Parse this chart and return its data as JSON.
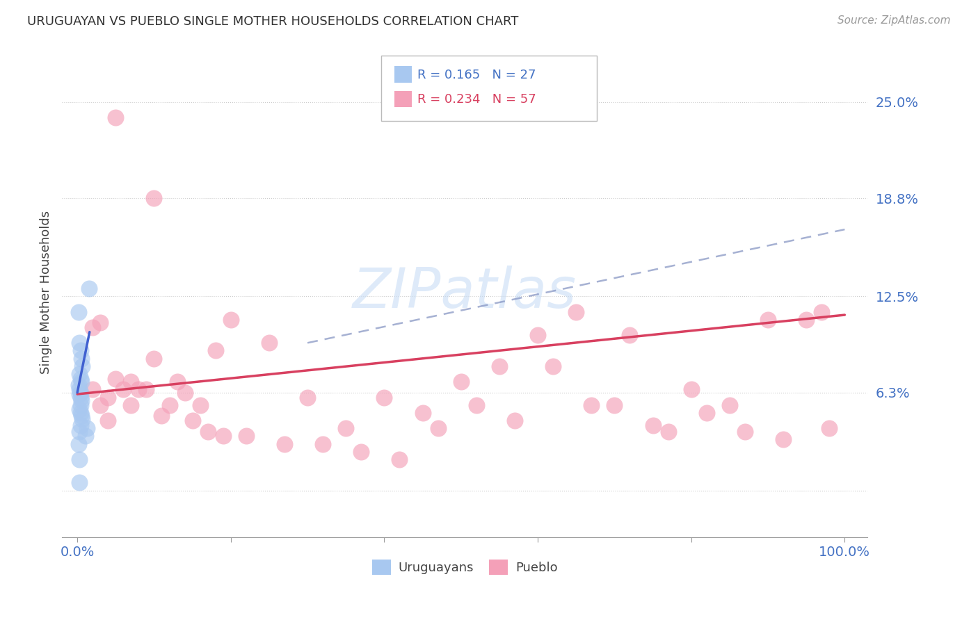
{
  "title": "URUGUAYAN VS PUEBLO SINGLE MOTHER HOUSEHOLDS CORRELATION CHART",
  "source": "Source: ZipAtlas.com",
  "ylabel": "Single Mother Households",
  "blue_color": "#a8c8f0",
  "pink_color": "#f4a0b8",
  "blue_line_color": "#4060d0",
  "pink_line_color": "#d84060",
  "dash_color": "#8090c0",
  "watermark_color": "#c8ddf5",
  "legend_blue_text": "R = 0.165   N = 27",
  "legend_pink_text": "R = 0.234   N = 57",
  "legend_blue_color": "#4472c4",
  "legend_pink_color": "#d84060",
  "uruguayan_x": [
    0.002,
    0.003,
    0.004,
    0.005,
    0.006,
    0.003,
    0.004,
    0.005,
    0.002,
    0.003,
    0.004,
    0.003,
    0.004,
    0.005,
    0.004,
    0.003,
    0.004,
    0.005,
    0.006,
    0.004,
    0.003,
    0.002,
    0.003,
    0.015,
    0.013,
    0.011,
    0.003
  ],
  "uruguayan_y": [
    0.115,
    0.095,
    0.09,
    0.085,
    0.08,
    0.075,
    0.072,
    0.07,
    0.068,
    0.065,
    0.063,
    0.062,
    0.06,
    0.058,
    0.055,
    0.052,
    0.05,
    0.048,
    0.046,
    0.042,
    0.038,
    0.03,
    0.02,
    0.13,
    0.04,
    0.035,
    0.005
  ],
  "pueblo_x": [
    0.02,
    0.03,
    0.04,
    0.05,
    0.06,
    0.07,
    0.08,
    0.1,
    0.12,
    0.14,
    0.16,
    0.18,
    0.2,
    0.25,
    0.3,
    0.35,
    0.4,
    0.45,
    0.5,
    0.55,
    0.6,
    0.65,
    0.7,
    0.75,
    0.8,
    0.85,
    0.9,
    0.95,
    0.98,
    0.02,
    0.03,
    0.04,
    0.07,
    0.09,
    0.11,
    0.13,
    0.15,
    0.17,
    0.19,
    0.22,
    0.27,
    0.32,
    0.37,
    0.42,
    0.47,
    0.52,
    0.57,
    0.62,
    0.67,
    0.72,
    0.77,
    0.82,
    0.87,
    0.92,
    0.97,
    0.05,
    0.1
  ],
  "pueblo_y": [
    0.105,
    0.108,
    0.06,
    0.072,
    0.065,
    0.07,
    0.065,
    0.085,
    0.055,
    0.063,
    0.055,
    0.09,
    0.11,
    0.095,
    0.06,
    0.04,
    0.06,
    0.05,
    0.07,
    0.08,
    0.1,
    0.115,
    0.055,
    0.042,
    0.065,
    0.055,
    0.11,
    0.11,
    0.04,
    0.065,
    0.055,
    0.045,
    0.055,
    0.065,
    0.048,
    0.07,
    0.045,
    0.038,
    0.035,
    0.035,
    0.03,
    0.03,
    0.025,
    0.02,
    0.04,
    0.055,
    0.045,
    0.08,
    0.055,
    0.1,
    0.038,
    0.05,
    0.038,
    0.033,
    0.115,
    0.24,
    0.188
  ],
  "blue_line": {
    "x0": 0.0,
    "x1": 0.016,
    "y0": 0.063,
    "y1": 0.102
  },
  "pink_line": {
    "x0": 0.0,
    "x1": 1.0,
    "y0": 0.062,
    "y1": 0.113
  },
  "dash_line": {
    "x0": 0.3,
    "x1": 1.0,
    "y0": 0.095,
    "y1": 0.168
  },
  "ytick_positions": [
    0.0,
    0.063,
    0.125,
    0.188,
    0.25
  ],
  "ytick_labels": [
    "",
    "6.3%",
    "12.5%",
    "18.8%",
    "25.0%"
  ],
  "xtick_positions": [
    0.0,
    0.2,
    0.4,
    0.6,
    0.8,
    1.0
  ],
  "xtick_labels": [
    "0.0%",
    "",
    "",
    "",
    "",
    "100.0%"
  ]
}
